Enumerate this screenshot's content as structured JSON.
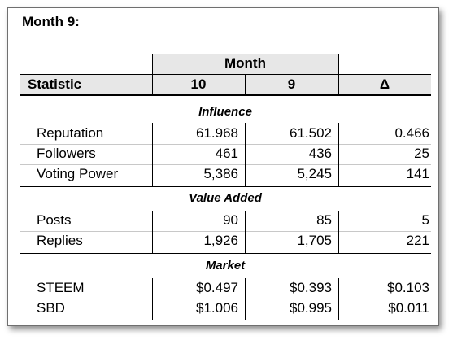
{
  "title": "Month 9:",
  "header": {
    "group_label": "Month",
    "statistic_label": "Statistic",
    "col_current": "10",
    "col_previous": "9",
    "col_delta": "Δ"
  },
  "sections": [
    {
      "label": "Influence",
      "rows": [
        {
          "name": "Reputation",
          "current": "61.968",
          "previous": "61.502",
          "delta": "0.466"
        },
        {
          "name": "Followers",
          "current": "461",
          "previous": "436",
          "delta": "25"
        },
        {
          "name": "Voting Power",
          "current": "5,386",
          "previous": "5,245",
          "delta": "141"
        }
      ]
    },
    {
      "label": "Value Added",
      "rows": [
        {
          "name": "Posts",
          "current": "90",
          "previous": "85",
          "delta": "5"
        },
        {
          "name": "Replies",
          "current": "1,926",
          "previous": "1,705",
          "delta": "221"
        }
      ]
    },
    {
      "label": "Market",
      "rows": [
        {
          "name": "STEEM",
          "current": "$0.497",
          "previous": "$0.393",
          "delta": "$0.103"
        },
        {
          "name": "SBD",
          "current": "$1.006",
          "previous": "$0.995",
          "delta": "$0.011"
        }
      ]
    }
  ]
}
